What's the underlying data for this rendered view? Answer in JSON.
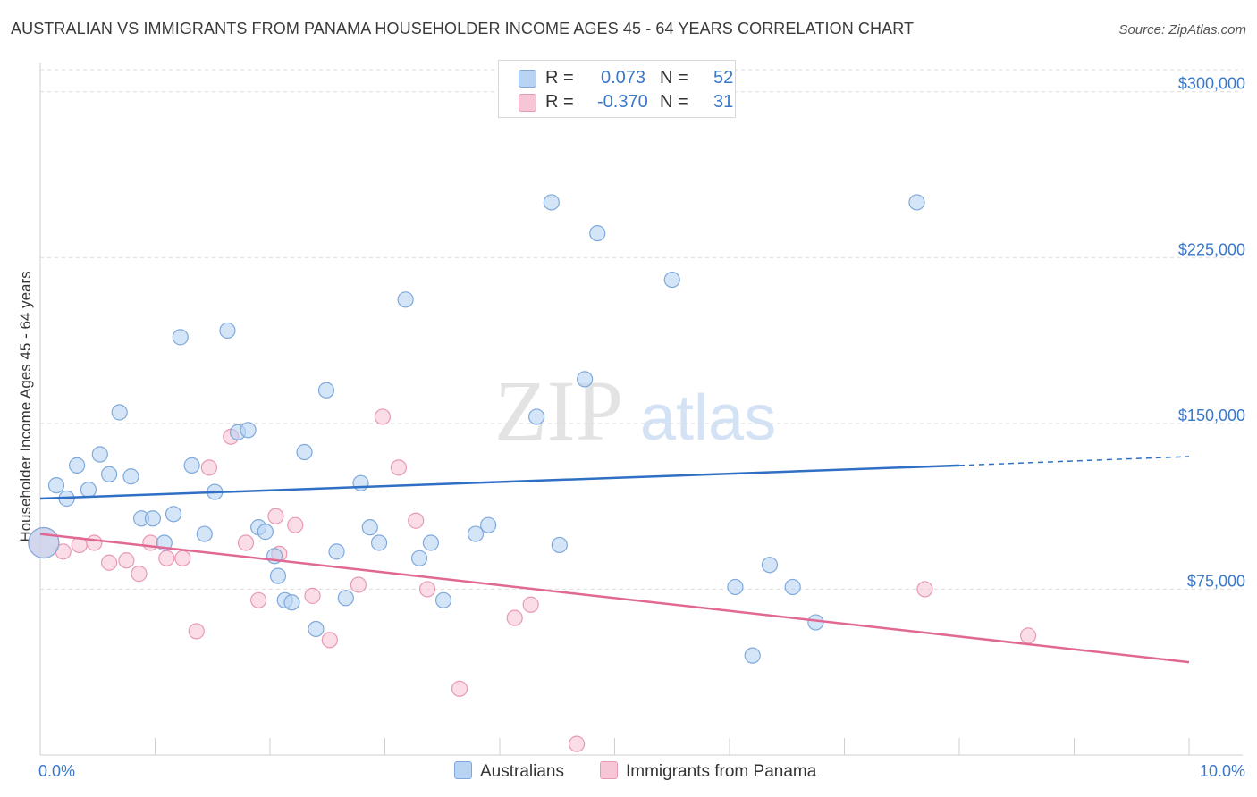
{
  "title": "AUSTRALIAN VS IMMIGRANTS FROM PANAMA HOUSEHOLDER INCOME AGES 45 - 64 YEARS CORRELATION CHART",
  "source": "Source: ZipAtlas.com",
  "watermark": {
    "zip": "ZIP",
    "atlas": "atlas"
  },
  "legend": {
    "r_label": "R =",
    "n_label": "N =",
    "australians": {
      "r": "0.073",
      "n": "52"
    },
    "panama": {
      "r": "-0.370",
      "n": "31"
    }
  },
  "colors": {
    "blue_fill": "#b9d3f3",
    "blue_stroke": "#7fa9dc",
    "blue_line": "#2f6fc4",
    "pink_fill": "#f7c6d6",
    "pink_stroke": "#e79ab5",
    "pink_line": "#e06893",
    "tick_label": "#3a78c9",
    "grid": "#dcdcdc"
  },
  "chart_data": {
    "type": "scatter",
    "xlabel": "",
    "ylabel": "Householder Income Ages 45 - 64 years",
    "xlim": [
      0,
      10
    ],
    "ylim": [
      0,
      310000
    ],
    "x_tick_labels": [
      "0.0%",
      "10.0%"
    ],
    "y_ticks": [
      75000,
      150000,
      225000,
      300000
    ],
    "y_tick_labels": [
      "$75,000",
      "$150,000",
      "$225,000",
      "$300,000"
    ],
    "grid": true,
    "legend_position": "top-center",
    "series": [
      {
        "name": "Australians",
        "color": "blue",
        "trend": {
          "x0": 0.0,
          "y0": 116000,
          "x1": 8.0,
          "y1": 131000,
          "dash_to_x": 10.0,
          "dash_to_y": 135000
        },
        "points": [
          {
            "x": 0.03,
            "y": 96000,
            "big": true
          },
          {
            "x": 0.14,
            "y": 122000
          },
          {
            "x": 0.23,
            "y": 116000
          },
          {
            "x": 0.32,
            "y": 131000
          },
          {
            "x": 0.42,
            "y": 120000
          },
          {
            "x": 0.52,
            "y": 136000
          },
          {
            "x": 0.6,
            "y": 127000
          },
          {
            "x": 0.69,
            "y": 155000
          },
          {
            "x": 0.79,
            "y": 126000
          },
          {
            "x": 0.88,
            "y": 107000
          },
          {
            "x": 0.98,
            "y": 107000
          },
          {
            "x": 1.08,
            "y": 96000
          },
          {
            "x": 1.16,
            "y": 109000
          },
          {
            "x": 1.22,
            "y": 189000
          },
          {
            "x": 1.32,
            "y": 131000
          },
          {
            "x": 1.43,
            "y": 100000
          },
          {
            "x": 1.52,
            "y": 119000
          },
          {
            "x": 1.63,
            "y": 192000
          },
          {
            "x": 1.72,
            "y": 146000
          },
          {
            "x": 1.81,
            "y": 147000
          },
          {
            "x": 1.9,
            "y": 103000
          },
          {
            "x": 1.96,
            "y": 101000
          },
          {
            "x": 2.04,
            "y": 90000
          },
          {
            "x": 2.07,
            "y": 81000
          },
          {
            "x": 2.13,
            "y": 70000
          },
          {
            "x": 2.19,
            "y": 69000
          },
          {
            "x": 2.3,
            "y": 137000
          },
          {
            "x": 2.4,
            "y": 57000
          },
          {
            "x": 2.49,
            "y": 165000
          },
          {
            "x": 2.58,
            "y": 92000
          },
          {
            "x": 2.66,
            "y": 71000
          },
          {
            "x": 2.79,
            "y": 123000
          },
          {
            "x": 2.87,
            "y": 103000
          },
          {
            "x": 2.95,
            "y": 96000
          },
          {
            "x": 3.18,
            "y": 206000
          },
          {
            "x": 3.3,
            "y": 89000
          },
          {
            "x": 3.4,
            "y": 96000
          },
          {
            "x": 3.51,
            "y": 70000
          },
          {
            "x": 3.79,
            "y": 100000
          },
          {
            "x": 3.9,
            "y": 104000
          },
          {
            "x": 4.32,
            "y": 153000
          },
          {
            "x": 4.45,
            "y": 250000
          },
          {
            "x": 4.52,
            "y": 95000
          },
          {
            "x": 4.74,
            "y": 170000
          },
          {
            "x": 4.85,
            "y": 236000
          },
          {
            "x": 5.5,
            "y": 215000
          },
          {
            "x": 6.05,
            "y": 76000
          },
          {
            "x": 6.2,
            "y": 45000
          },
          {
            "x": 6.35,
            "y": 86000
          },
          {
            "x": 6.55,
            "y": 76000
          },
          {
            "x": 6.75,
            "y": 60000
          },
          {
            "x": 7.63,
            "y": 250000
          }
        ]
      },
      {
        "name": "Immigrants from Panama",
        "color": "pink",
        "trend": {
          "x0": 0.0,
          "y0": 100000,
          "x1": 10.0,
          "y1": 42000
        },
        "points": [
          {
            "x": 0.03,
            "y": 96000,
            "big": true
          },
          {
            "x": 0.2,
            "y": 92000
          },
          {
            "x": 0.34,
            "y": 95000
          },
          {
            "x": 0.47,
            "y": 96000
          },
          {
            "x": 0.6,
            "y": 87000
          },
          {
            "x": 0.75,
            "y": 88000
          },
          {
            "x": 0.86,
            "y": 82000
          },
          {
            "x": 0.96,
            "y": 96000
          },
          {
            "x": 1.1,
            "y": 89000
          },
          {
            "x": 1.24,
            "y": 89000
          },
          {
            "x": 1.36,
            "y": 56000
          },
          {
            "x": 1.47,
            "y": 130000
          },
          {
            "x": 1.66,
            "y": 144000
          },
          {
            "x": 1.79,
            "y": 96000
          },
          {
            "x": 1.9,
            "y": 70000
          },
          {
            "x": 2.05,
            "y": 108000
          },
          {
            "x": 2.08,
            "y": 91000
          },
          {
            "x": 2.22,
            "y": 104000
          },
          {
            "x": 2.37,
            "y": 72000
          },
          {
            "x": 2.52,
            "y": 52000
          },
          {
            "x": 2.77,
            "y": 77000
          },
          {
            "x": 2.98,
            "y": 153000
          },
          {
            "x": 3.12,
            "y": 130000
          },
          {
            "x": 3.27,
            "y": 106000
          },
          {
            "x": 3.37,
            "y": 75000
          },
          {
            "x": 3.65,
            "y": 30000
          },
          {
            "x": 4.13,
            "y": 62000
          },
          {
            "x": 4.27,
            "y": 68000
          },
          {
            "x": 4.67,
            "y": 5000
          },
          {
            "x": 7.7,
            "y": 75000
          },
          {
            "x": 8.6,
            "y": 54000
          }
        ]
      }
    ]
  },
  "bottom_legend": {
    "australians": "Australians",
    "panama": "Immigrants from Panama"
  }
}
